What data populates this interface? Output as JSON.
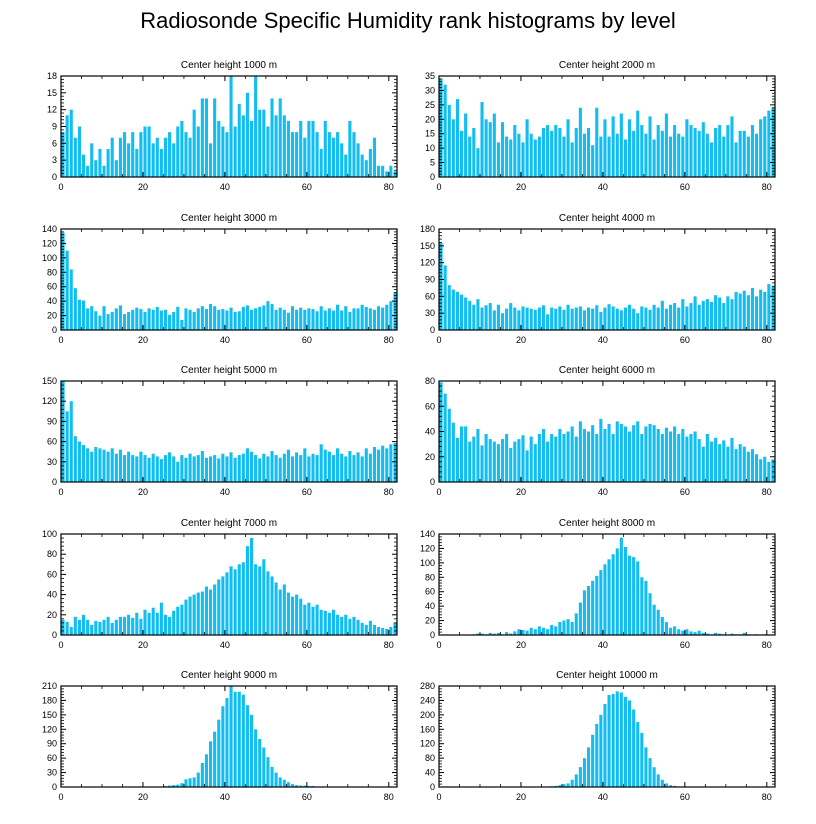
{
  "title": "Radiosonde Specific Humidity rank histograms by level",
  "bar_color": "#12BEF1",
  "chart_data": [
    {
      "type": "bar",
      "title": "Center height 1000 m",
      "xlim": [
        0,
        82
      ],
      "ylim": [
        0,
        18
      ],
      "xticks": [
        0,
        20,
        40,
        60,
        80
      ],
      "yticks": [
        0,
        3,
        6,
        9,
        12,
        15,
        18
      ],
      "values": [
        8,
        11,
        12,
        7,
        9,
        4,
        2,
        6,
        3,
        5,
        2,
        5,
        7,
        3,
        7,
        8,
        6,
        8,
        5,
        8,
        9,
        9,
        6,
        7,
        5,
        7,
        8,
        6,
        9,
        10,
        8,
        7,
        12,
        9,
        14,
        14,
        6,
        14,
        10,
        9,
        8,
        18,
        9,
        13,
        11,
        15,
        10,
        18,
        12,
        12,
        9,
        14,
        11,
        14,
        11,
        10,
        8,
        8,
        10,
        7,
        10,
        10,
        8,
        5,
        10,
        8,
        7,
        8,
        6,
        4,
        10,
        8,
        6,
        4,
        3,
        5,
        7,
        2,
        2,
        1,
        2,
        1
      ]
    },
    {
      "type": "bar",
      "title": "Center height 2000 m",
      "xlim": [
        0,
        82
      ],
      "ylim": [
        0,
        35
      ],
      "xticks": [
        0,
        20,
        40,
        60,
        80
      ],
      "yticks": [
        0,
        5,
        10,
        15,
        20,
        25,
        30,
        35
      ],
      "values": [
        34,
        32,
        25,
        20,
        27,
        16,
        22,
        14,
        17,
        10,
        26,
        20,
        19,
        22,
        12,
        19,
        14,
        13,
        18,
        15,
        12,
        20,
        15,
        13,
        14,
        17,
        18,
        16,
        18,
        17,
        14,
        20,
        12,
        17,
        24,
        15,
        17,
        11,
        24,
        14,
        20,
        14,
        21,
        15,
        22,
        13,
        20,
        16,
        23,
        18,
        15,
        21,
        13,
        18,
        16,
        22,
        14,
        18,
        15,
        14,
        20,
        18,
        17,
        16,
        19,
        15,
        12,
        17,
        18,
        14,
        18,
        21,
        12,
        16,
        16,
        14,
        18,
        15,
        20,
        21,
        23,
        24
      ]
    },
    {
      "type": "bar",
      "title": "Center height 3000 m",
      "xlim": [
        0,
        82
      ],
      "ylim": [
        0,
        140
      ],
      "xticks": [
        0,
        20,
        40,
        60,
        80
      ],
      "yticks": [
        0,
        20,
        40,
        60,
        80,
        100,
        120,
        140
      ],
      "values": [
        135,
        110,
        84,
        58,
        42,
        41,
        30,
        33,
        26,
        20,
        33,
        22,
        25,
        30,
        34,
        22,
        25,
        28,
        31,
        29,
        25,
        30,
        28,
        32,
        27,
        28,
        21,
        25,
        32,
        14,
        30,
        28,
        25,
        30,
        33,
        29,
        36,
        33,
        28,
        29,
        27,
        31,
        25,
        26,
        32,
        34,
        28,
        30,
        32,
        34,
        40,
        36,
        28,
        31,
        28,
        24,
        33,
        28,
        31,
        28,
        30,
        29,
        26,
        33,
        27,
        30,
        27,
        35,
        27,
        33,
        25,
        30,
        30,
        35,
        32,
        30,
        28,
        33,
        31,
        35,
        40,
        52
      ]
    },
    {
      "type": "bar",
      "title": "Center height 4000 m",
      "xlim": [
        0,
        82
      ],
      "ylim": [
        0,
        180
      ],
      "xticks": [
        0,
        20,
        40,
        60,
        80
      ],
      "yticks": [
        0,
        30,
        60,
        90,
        120,
        150,
        180
      ],
      "values": [
        155,
        115,
        80,
        72,
        68,
        63,
        58,
        52,
        45,
        55,
        40,
        44,
        48,
        35,
        45,
        30,
        38,
        48,
        40,
        35,
        42,
        40,
        38,
        36,
        40,
        44,
        28,
        40,
        38,
        42,
        36,
        45,
        38,
        40,
        42,
        35,
        40,
        38,
        44,
        32,
        40,
        46,
        42,
        38,
        35,
        40,
        45,
        38,
        30,
        42,
        40,
        36,
        45,
        40,
        52,
        38,
        45,
        48,
        40,
        55,
        42,
        48,
        60,
        45,
        52,
        55,
        50,
        62,
        58,
        48,
        60,
        55,
        68,
        65,
        70,
        62,
        75,
        60,
        72,
        68,
        82,
        78
      ]
    },
    {
      "type": "bar",
      "title": "Center height 5000 m",
      "xlim": [
        0,
        82
      ],
      "ylim": [
        0,
        150
      ],
      "xticks": [
        0,
        20,
        40,
        60,
        80
      ],
      "yticks": [
        0,
        30,
        60,
        90,
        120,
        150
      ],
      "values": [
        150,
        105,
        120,
        68,
        60,
        55,
        50,
        45,
        52,
        50,
        48,
        45,
        50,
        42,
        48,
        40,
        45,
        40,
        38,
        45,
        40,
        36,
        42,
        38,
        34,
        40,
        44,
        38,
        30,
        40,
        36,
        42,
        38,
        40,
        46,
        36,
        38,
        40,
        35,
        42,
        38,
        44,
        36,
        40,
        42,
        50,
        45,
        40,
        35,
        42,
        38,
        46,
        40,
        36,
        42,
        48,
        38,
        44,
        40,
        50,
        38,
        42,
        40,
        56,
        48,
        45,
        40,
        50,
        42,
        38,
        46,
        40,
        44,
        38,
        50,
        42,
        52,
        48,
        54,
        50,
        56,
        58
      ]
    },
    {
      "type": "bar",
      "title": "Center height 6000 m",
      "xlim": [
        0,
        82
      ],
      "ylim": [
        0,
        80
      ],
      "xticks": [
        0,
        20,
        40,
        60,
        80
      ],
      "yticks": [
        0,
        20,
        40,
        60,
        80
      ],
      "values": [
        79,
        70,
        58,
        47,
        35,
        44,
        44,
        32,
        36,
        42,
        29,
        38,
        34,
        32,
        30,
        34,
        38,
        27,
        32,
        34,
        37,
        25,
        36,
        30,
        38,
        42,
        32,
        38,
        36,
        42,
        38,
        40,
        44,
        36,
        48,
        42,
        40,
        45,
        38,
        50,
        42,
        46,
        38,
        48,
        46,
        44,
        40,
        45,
        48,
        38,
        44,
        46,
        45,
        42,
        38,
        43,
        40,
        44,
        38,
        42,
        36,
        38,
        40,
        34,
        28,
        38,
        32,
        35,
        30,
        33,
        28,
        35,
        26,
        30,
        28,
        24,
        26,
        22,
        18,
        20,
        16,
        18
      ]
    },
    {
      "type": "bar",
      "title": "Center height 7000 m",
      "xlim": [
        0,
        82
      ],
      "ylim": [
        0,
        100
      ],
      "xticks": [
        0,
        20,
        40,
        60,
        80
      ],
      "yticks": [
        0,
        20,
        40,
        60,
        80,
        100
      ],
      "values": [
        15,
        13,
        8,
        18,
        15,
        20,
        15,
        10,
        14,
        13,
        15,
        18,
        12,
        15,
        18,
        18,
        20,
        17,
        22,
        16,
        25,
        22,
        27,
        22,
        32,
        20,
        18,
        24,
        28,
        30,
        35,
        38,
        40,
        42,
        43,
        48,
        45,
        50,
        55,
        58,
        62,
        68,
        65,
        70,
        72,
        88,
        96,
        70,
        68,
        75,
        63,
        58,
        52,
        45,
        50,
        42,
        38,
        40,
        36,
        30,
        32,
        28,
        30,
        25,
        24,
        22,
        25,
        20,
        18,
        20,
        16,
        18,
        15,
        12,
        10,
        14,
        10,
        8,
        7,
        6,
        8,
        12
      ]
    },
    {
      "type": "bar",
      "title": "Center height 8000 m",
      "xlim": [
        0,
        82
      ],
      "ylim": [
        0,
        140
      ],
      "xticks": [
        0,
        20,
        40,
        60,
        80
      ],
      "yticks": [
        0,
        20,
        40,
        60,
        80,
        100,
        120,
        140
      ],
      "values": [
        0,
        0,
        0,
        0,
        0,
        0,
        0,
        0,
        1,
        2,
        2,
        1,
        3,
        2,
        3,
        1,
        4,
        2,
        5,
        8,
        7,
        6,
        10,
        8,
        12,
        10,
        8,
        14,
        12,
        18,
        20,
        22,
        18,
        30,
        45,
        62,
        68,
        75,
        82,
        90,
        98,
        105,
        112,
        120,
        135,
        122,
        110,
        108,
        102,
        80,
        75,
        58,
        42,
        35,
        25,
        18,
        10,
        12,
        8,
        6,
        8,
        5,
        4,
        6,
        3,
        2,
        1,
        3,
        2,
        1,
        0,
        2,
        1,
        1,
        3,
        1,
        0,
        1,
        0,
        1,
        0,
        0
      ]
    },
    {
      "type": "bar",
      "title": "Center height 9000 m",
      "xlim": [
        0,
        82
      ],
      "ylim": [
        0,
        210
      ],
      "xticks": [
        0,
        20,
        40,
        60,
        80
      ],
      "yticks": [
        0,
        30,
        60,
        90,
        120,
        150,
        180,
        210
      ],
      "values": [
        0,
        0,
        0,
        0,
        0,
        0,
        0,
        0,
        0,
        0,
        0,
        0,
        0,
        0,
        0,
        0,
        0,
        0,
        0,
        0,
        1,
        0,
        1,
        0,
        1,
        2,
        3,
        4,
        5,
        8,
        16,
        18,
        20,
        30,
        50,
        68,
        95,
        115,
        140,
        168,
        185,
        210,
        198,
        198,
        192,
        170,
        150,
        120,
        100,
        82,
        62,
        42,
        30,
        20,
        15,
        10,
        6,
        4,
        3,
        3,
        2,
        2,
        1,
        1,
        1,
        1,
        0,
        0,
        0,
        0,
        0,
        0,
        0,
        0,
        0,
        0,
        0,
        0,
        0,
        0,
        0,
        0
      ]
    },
    {
      "type": "bar",
      "title": "Center height 10000 m",
      "xlim": [
        0,
        82
      ],
      "ylim": [
        0,
        280
      ],
      "xticks": [
        0,
        20,
        40,
        60,
        80
      ],
      "yticks": [
        0,
        40,
        80,
        120,
        160,
        200,
        240,
        280
      ],
      "values": [
        0,
        0,
        0,
        0,
        0,
        0,
        0,
        0,
        0,
        0,
        0,
        0,
        0,
        0,
        0,
        0,
        0,
        0,
        0,
        0,
        0,
        0,
        0,
        0,
        0,
        0,
        1,
        2,
        3,
        5,
        8,
        10,
        20,
        35,
        55,
        80,
        110,
        145,
        175,
        200,
        230,
        255,
        258,
        265,
        262,
        250,
        240,
        215,
        180,
        150,
        110,
        80,
        55,
        35,
        20,
        10,
        5,
        3,
        1,
        1,
        0,
        0,
        0,
        0,
        0,
        0,
        0,
        0,
        0,
        0,
        0,
        0,
        0,
        0,
        0,
        0,
        0,
        0,
        0,
        0,
        0,
        0
      ]
    }
  ]
}
